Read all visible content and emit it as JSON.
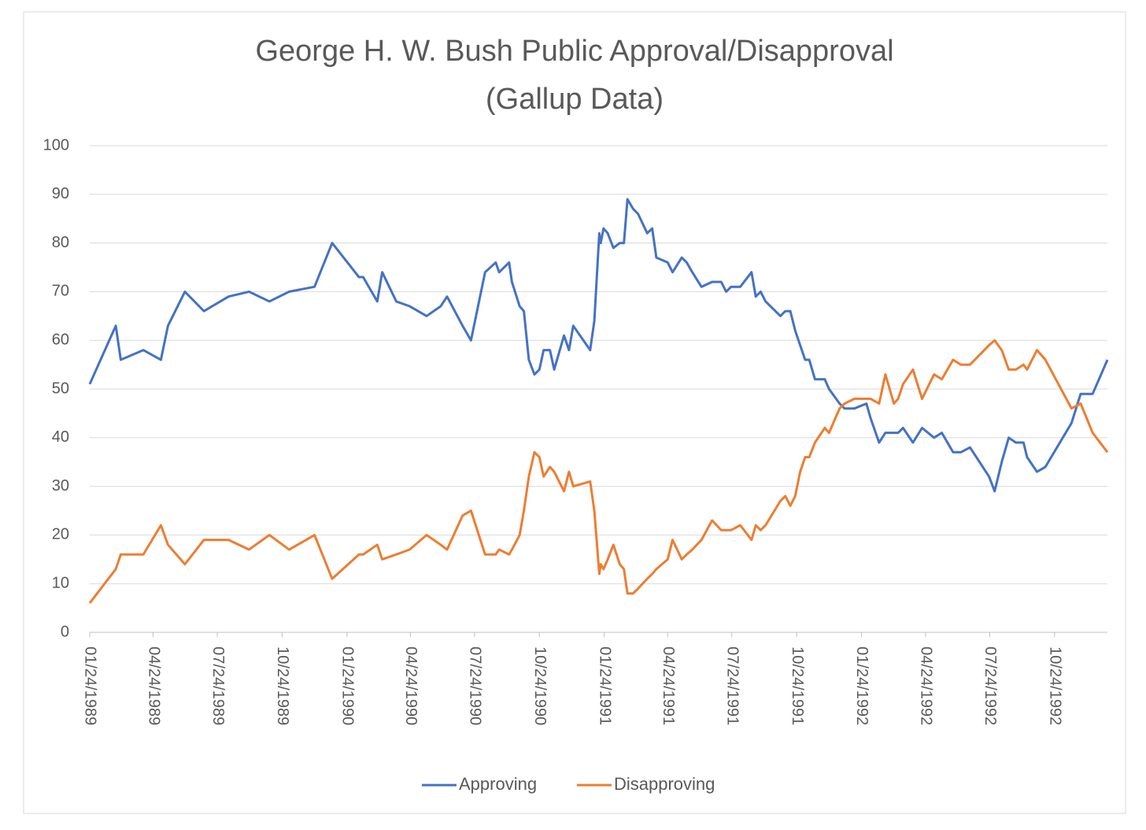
{
  "chart_data": {
    "type": "line",
    "title": [
      "George H. W. Bush Public Approval/Disapproval",
      "(Gallup Data)"
    ],
    "x": [
      "01/24/1989",
      "03/02/1989",
      "03/09/1989",
      "04/10/1989",
      "05/05/1989",
      "05/15/1989",
      "06/08/1989",
      "07/05/1989",
      "08/09/1989",
      "09/07/1989",
      "10/06/1989",
      "11/03/1989",
      "12/09/1989",
      "01/03/1990",
      "02/10/1990",
      "02/16/1990",
      "03/08/1990",
      "03/15/1990",
      "04/04/1990",
      "04/23/1990",
      "05/17/1990",
      "06/06/1990",
      "06/15/1990",
      "07/07/1990",
      "07/19/1990",
      "08/08/1990",
      "08/23/1990",
      "08/28/1990",
      "09/11/1990",
      "09/15/1990",
      "09/26/1990",
      "10/02/1990",
      "10/09/1990",
      "10/17/1990",
      "10/24/1990",
      "10/30/1990",
      "11/08/1990",
      "11/14/1990",
      "11/28/1990",
      "12/05/1990",
      "12/11/1990",
      "01/04/1991",
      "01/10/1991",
      "01/17/1991",
      "01/19/1991",
      "01/23/1991",
      "01/29/1991",
      "02/06/1991",
      "02/15/1991",
      "02/21/1991",
      "02/26/1991",
      "03/06/1991",
      "03/13/1991",
      "03/26/1991",
      "04/02/1991",
      "04/08/1991",
      "04/24/1991",
      "05/01/1991",
      "05/14/1991",
      "05/21/1991",
      "05/29/1991",
      "06/11/1991",
      "06/26/1991",
      "07/09/1991",
      "07/16/1991",
      "07/23/1991",
      "08/05/1991",
      "08/21/1991",
      "08/27/1991",
      "09/03/1991",
      "09/10/1991",
      "10/01/1991",
      "10/08/1991",
      "10/15/1991",
      "10/22/1991",
      "10/29/1991",
      "11/05/1991",
      "11/11/1991",
      "11/19/1991",
      "12/03/1991",
      "12/09/1991",
      "12/24/1991",
      "12/31/1991",
      "01/14/1992",
      "01/31/1992",
      "02/06/1992",
      "02/18/1992",
      "02/27/1992",
      "03/10/1992",
      "03/16/1992",
      "03/23/1992",
      "04/06/1992",
      "04/19/1992",
      "05/06/1992",
      "05/17/1992",
      "06/02/1992",
      "06/13/1992",
      "06/26/1992",
      "07/23/1992",
      "07/31/1992",
      "08/10/1992",
      "08/20/1992",
      "08/30/1992",
      "09/10/1992",
      "09/15/1992",
      "09/29/1992",
      "10/11/1992",
      "11/17/1992",
      "11/30/1992",
      "12/17/1992",
      "01/07/1993"
    ],
    "series": [
      {
        "name": "Approving",
        "color": "#4472c4",
        "values": [
          51,
          63,
          56,
          58,
          56,
          63,
          70,
          66,
          69,
          70,
          68,
          70,
          71,
          80,
          73,
          73,
          68,
          74,
          68,
          67,
          65,
          67,
          69,
          63,
          60,
          74,
          76,
          74,
          76,
          72,
          67,
          66,
          56,
          53,
          54,
          58,
          58,
          54,
          61,
          58,
          63,
          58,
          64,
          82,
          80,
          83,
          82,
          79,
          80,
          80,
          89,
          87,
          86,
          82,
          83,
          77,
          76,
          74,
          77,
          76,
          74,
          71,
          72,
          72,
          70,
          71,
          71,
          74,
          69,
          70,
          68,
          65,
          66,
          66,
          62,
          59,
          56,
          56,
          52,
          52,
          50,
          47,
          46,
          46,
          47,
          44,
          39,
          41,
          41,
          41,
          42,
          39,
          42,
          40,
          41,
          37,
          37,
          38,
          32,
          29,
          35,
          40,
          39,
          39,
          36,
          33,
          34,
          43,
          49,
          49,
          56
        ]
      },
      {
        "name": "Disapproving",
        "color": "#ed7d31",
        "values": [
          6,
          13,
          16,
          16,
          22,
          18,
          14,
          19,
          19,
          17,
          20,
          17,
          20,
          11,
          16,
          16,
          18,
          15,
          16,
          17,
          20,
          18,
          17,
          24,
          25,
          16,
          16,
          17,
          16,
          17,
          20,
          25,
          32,
          37,
          36,
          32,
          34,
          33,
          29,
          33,
          30,
          31,
          25,
          12,
          14,
          13,
          15,
          18,
          14,
          13,
          8,
          8,
          9,
          11,
          12,
          13,
          15,
          19,
          15,
          16,
          17,
          19,
          23,
          21,
          21,
          21,
          22,
          19,
          22,
          21,
          22,
          27,
          28,
          26,
          28,
          33,
          36,
          36,
          39,
          42,
          41,
          46,
          47,
          48,
          48,
          48,
          47,
          53,
          47,
          48,
          51,
          54,
          48,
          53,
          52,
          56,
          55,
          55,
          59,
          60,
          58,
          54,
          54,
          55,
          54,
          58,
          56,
          46,
          47,
          41,
          37
        ]
      }
    ],
    "xlim": [
      "01/24/1989",
      "01/07/1993"
    ],
    "xticks": [
      "01/24/1989",
      "04/24/1989",
      "07/24/1989",
      "10/24/1989",
      "01/24/1990",
      "04/24/1990",
      "07/24/1990",
      "10/24/1990",
      "01/24/1991",
      "04/24/1991",
      "07/24/1991",
      "10/24/1991",
      "01/24/1992",
      "04/24/1992",
      "07/24/1992",
      "10/24/1992"
    ],
    "ylim": [
      0,
      100
    ],
    "yticks": [
      0,
      10,
      20,
      30,
      40,
      50,
      60,
      70,
      80,
      90,
      100
    ],
    "grid": true,
    "legend": "bottom"
  }
}
